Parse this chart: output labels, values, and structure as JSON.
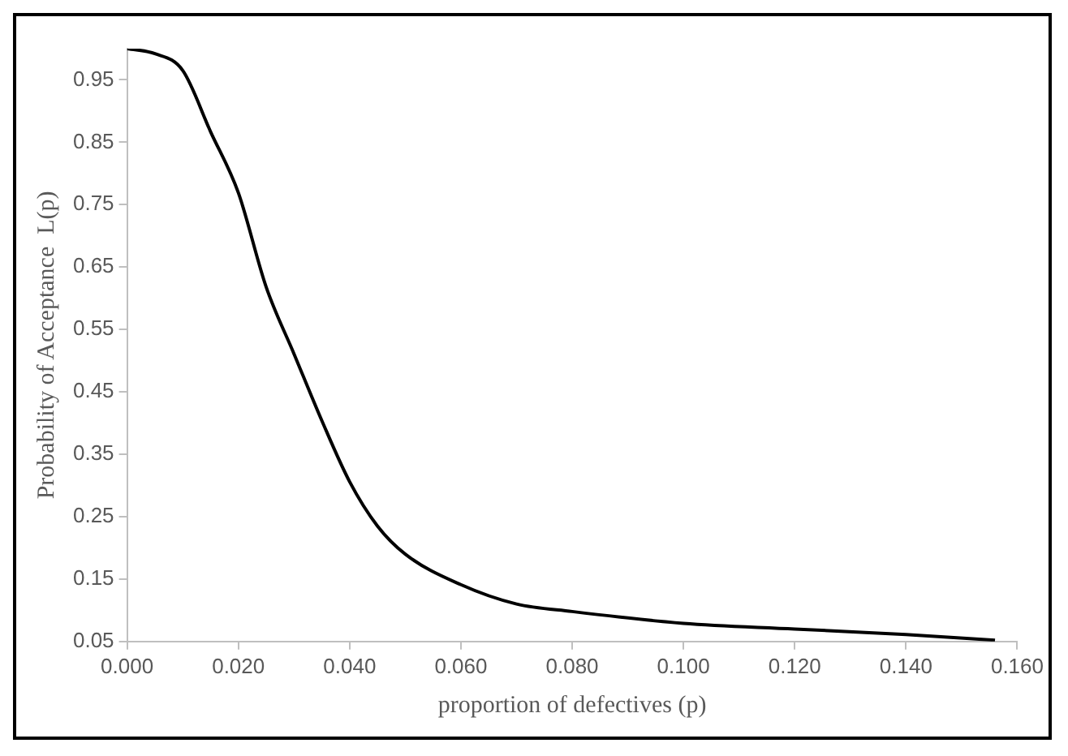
{
  "chart_data": {
    "type": "line",
    "xlabel": "proportion of defectives (p)",
    "ylabel": "Probability of Acceptance  L(p)",
    "x": [
      0,
      0.005,
      0.01,
      0.015,
      0.02,
      0.025,
      0.03,
      0.035,
      0.04,
      0.045,
      0.05,
      0.06,
      0.07,
      0.08,
      0.1,
      0.12,
      0.14,
      0.156
    ],
    "series": [
      {
        "color": "#000000",
        "values": [
          1.0,
          0.992,
          0.965,
          0.867,
          0.769,
          0.618,
          0.511,
          0.404,
          0.306,
          0.235,
          0.19,
          0.141,
          0.11,
          0.098,
          0.079,
          0.07,
          0.061,
          0.052
        ]
      }
    ],
    "xlim": [
      0,
      0.16
    ],
    "xticks": [
      {
        "value": 0,
        "label": "0.000"
      },
      {
        "value": 0.02,
        "label": "0.020"
      },
      {
        "value": 0.04,
        "label": "0.040"
      },
      {
        "value": 0.06,
        "label": "0.060"
      },
      {
        "value": 0.08,
        "label": "0.080"
      },
      {
        "value": 0.1,
        "label": "0.100"
      },
      {
        "value": 0.12,
        "label": "0.120"
      },
      {
        "value": 0.14,
        "label": "0.140"
      },
      {
        "value": 0.16,
        "label": "0.160"
      }
    ],
    "ylim": [
      0.05,
      1.0
    ],
    "yticks": [
      0.05,
      0.15,
      0.25,
      0.35,
      0.45,
      0.55,
      0.65,
      0.75,
      0.85,
      0.95
    ],
    "grid": false,
    "legend": false,
    "marker": "none",
    "line_style": "solid"
  }
}
